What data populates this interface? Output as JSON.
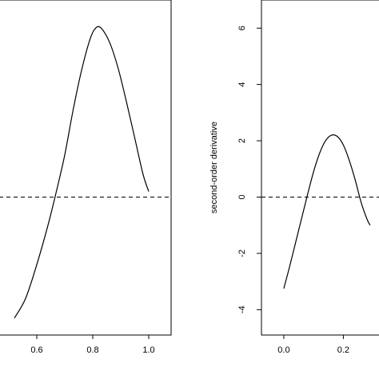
{
  "chart_data": [
    {
      "type": "line",
      "title": "",
      "xlabel": "",
      "ylabel": "",
      "xlim": [
        0.44,
        1.08
      ],
      "ylim": [
        -4.9,
        7.0
      ],
      "x_ticks": [
        0.6,
        0.8,
        1.0
      ],
      "x_tick_labels": [
        "0.6",
        "0.8",
        "1.0"
      ],
      "y_ticks": [],
      "grid": false,
      "reference_line": {
        "y": 0,
        "style": "dashed"
      },
      "series": [
        {
          "x": [
            0.52,
            0.56,
            0.6,
            0.64,
            0.67,
            0.7,
            0.73,
            0.76,
            0.79,
            0.81,
            0.83,
            0.86,
            0.89,
            0.92,
            0.95,
            0.98,
            1.0
          ],
          "y": [
            -4.3,
            -3.6,
            -2.4,
            -1.0,
            0.2,
            1.5,
            3.1,
            4.5,
            5.6,
            6.0,
            6.0,
            5.5,
            4.6,
            3.4,
            2.1,
            0.8,
            0.2
          ]
        }
      ]
    },
    {
      "type": "line",
      "title": "",
      "xlabel": "",
      "ylabel": "second-order derivative",
      "xlim": [
        -0.075,
        0.36
      ],
      "ylim": [
        -4.9,
        7.0
      ],
      "x_ticks": [
        0.0,
        0.2
      ],
      "x_tick_labels": [
        "0.0",
        "0.2"
      ],
      "y_ticks": [
        -4,
        -2,
        0,
        2,
        4,
        6
      ],
      "y_tick_labels": [
        "-4",
        "-2",
        "0",
        "2",
        "4",
        "6"
      ],
      "grid": false,
      "reference_line": {
        "y": 0,
        "style": "dashed"
      },
      "series": [
        {
          "x": [
            0.0,
            0.02,
            0.04,
            0.06,
            0.08,
            0.1,
            0.12,
            0.14,
            0.16,
            0.18,
            0.2,
            0.22,
            0.24,
            0.26,
            0.28,
            0.29
          ],
          "y": [
            -3.25,
            -2.45,
            -1.6,
            -0.75,
            0.1,
            0.9,
            1.55,
            2.0,
            2.2,
            2.15,
            1.85,
            1.3,
            0.6,
            -0.2,
            -0.8,
            -1.0
          ]
        }
      ]
    }
  ]
}
